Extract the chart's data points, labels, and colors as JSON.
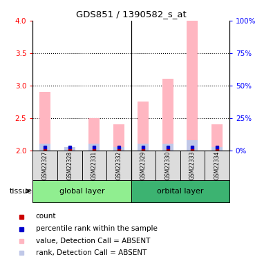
{
  "title": "GDS851 / 1390582_s_at",
  "samples": [
    "GSM22327",
    "GSM22328",
    "GSM22331",
    "GSM22332",
    "GSM22329",
    "GSM22330",
    "GSM22333",
    "GSM22334"
  ],
  "groups": [
    {
      "name": "global layer",
      "color": "#90EE90"
    },
    {
      "name": "orbital layer",
      "color": "#3CB371"
    }
  ],
  "group_ranges": [
    [
      0,
      4
    ],
    [
      4,
      8
    ]
  ],
  "value_absent": [
    2.9,
    2.05,
    2.5,
    2.4,
    2.75,
    3.1,
    4.0,
    2.4
  ],
  "rank_absent": [
    2.1,
    2.05,
    2.1,
    2.05,
    2.1,
    2.1,
    2.15,
    2.05
  ],
  "ylim_left": [
    2.0,
    4.0
  ],
  "ylim_right": [
    0,
    100
  ],
  "yticks_left": [
    2.0,
    2.5,
    3.0,
    3.5,
    4.0
  ],
  "yticks_right": [
    0,
    25,
    50,
    75,
    100
  ],
  "ytick_labels_right": [
    "0%",
    "25%",
    "50%",
    "75%",
    "100%"
  ],
  "color_value_absent": "#FFB6C1",
  "color_rank_absent": "#C0C8E8",
  "color_count": "#CC0000",
  "color_rank": "#0000CC",
  "bar_width": 0.45,
  "tissue_label": "tissue",
  "separator_col": 3,
  "background_color": "#ffffff",
  "legend_items": [
    {
      "color": "#CC0000",
      "label": "count"
    },
    {
      "color": "#0000CC",
      "label": "percentile rank within the sample"
    },
    {
      "color": "#FFB6C1",
      "label": "value, Detection Call = ABSENT"
    },
    {
      "color": "#C0C8E8",
      "label": "rank, Detection Call = ABSENT"
    }
  ]
}
